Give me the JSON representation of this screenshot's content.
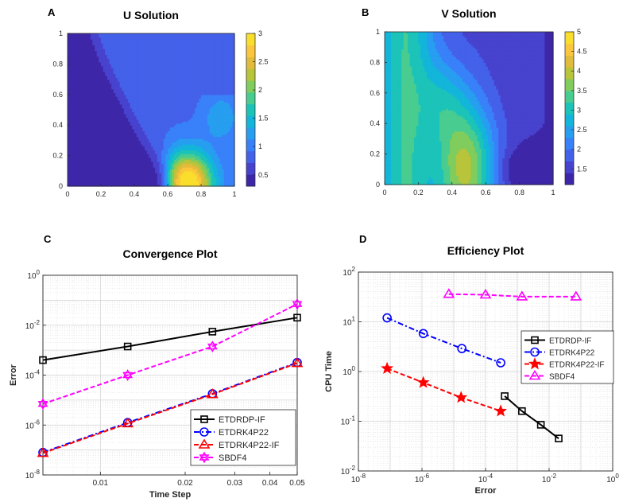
{
  "colors": {
    "parula": [
      "#3E26A8",
      "#4743CE",
      "#4461EA",
      "#3881F9",
      "#279EF0",
      "#13B5DA",
      "#1CC3B8",
      "#49CC8F",
      "#80CC5D",
      "#B8C43A",
      "#E1BB3C",
      "#FBC63B",
      "#F9DE2D",
      "#F9FB0E"
    ],
    "axis": "#262626",
    "grid": "#d4d4d4"
  },
  "chart_data": [
    {
      "panel": "A",
      "type": "heatmap",
      "title": "U Solution",
      "xlim": [
        0,
        1
      ],
      "ylim": [
        0,
        1
      ],
      "xticks": [
        "0",
        "0.2",
        "0.4",
        "0.6",
        "0.8",
        "1"
      ],
      "yticks": [
        "0",
        "0.2",
        "0.4",
        "0.6",
        "0.8",
        "1"
      ],
      "colorbar": {
        "min": 0.3,
        "max": 3,
        "ticks": [
          "0.5",
          "1",
          "1.5",
          "2",
          "2.5",
          "3"
        ]
      }
    },
    {
      "panel": "B",
      "type": "heatmap",
      "title": "V Solution",
      "xlim": [
        0,
        1
      ],
      "ylim": [
        0,
        1
      ],
      "xticks": [
        "0",
        "0.2",
        "0.4",
        "0.6",
        "0.8",
        "1"
      ],
      "yticks": [
        "0",
        "0.2",
        "0.4",
        "0.6",
        "0.8",
        "1"
      ],
      "colorbar": {
        "min": 1.1,
        "max": 5,
        "ticks": [
          "1.5",
          "2",
          "2.5",
          "3",
          "3.5",
          "4",
          "4.5",
          "5"
        ]
      }
    },
    {
      "panel": "C",
      "type": "line",
      "title": "Convergence Plot",
      "xlabel": "Time Step",
      "ylabel": "Error",
      "xscale": "log",
      "yscale": "log",
      "xlim": [
        0.00625,
        0.05
      ],
      "ylim": [
        1e-08,
        1
      ],
      "xticks": [
        {
          "v": 0.01,
          "label": "0.01"
        },
        {
          "v": 0.02,
          "label": "0.02"
        },
        {
          "v": 0.03,
          "label": "0.03"
        },
        {
          "v": 0.04,
          "label": "0.04"
        },
        {
          "v": 0.05,
          "label": "0.05"
        }
      ],
      "yticks": [
        {
          "e": -8,
          "label": "10-8"
        },
        {
          "e": -6,
          "label": "10-6"
        },
        {
          "e": -4,
          "label": "10-4"
        },
        {
          "e": -2,
          "label": "10-2"
        },
        {
          "e": 0,
          "label": "100"
        }
      ],
      "legend_position": "bottom-right",
      "series": [
        {
          "name": "ETDRDP-IF",
          "color": "#000000",
          "marker": "square",
          "dash": "solid",
          "x": [
            0.00625,
            0.0125,
            0.025,
            0.05
          ],
          "y": [
            0.0004,
            0.0014,
            0.0055,
            0.02
          ]
        },
        {
          "name": "ETDRK4P22",
          "color": "#0000FF",
          "marker": "circle",
          "dash": "dashdot",
          "x": [
            0.00625,
            0.0125,
            0.025,
            0.05
          ],
          "y": [
            8e-08,
            1.25e-06,
            1.8e-05,
            0.00032
          ]
        },
        {
          "name": "ETDRK4P22-IF",
          "color": "#FF0000",
          "marker": "triangle",
          "dash": "dashed",
          "x": [
            0.00625,
            0.0125,
            0.025,
            0.05
          ],
          "y": [
            7.5e-08,
            1.15e-06,
            1.7e-05,
            0.0003
          ]
        },
        {
          "name": "SBDF4",
          "color": "#FF00FF",
          "marker": "hexagram",
          "dash": "dashed",
          "x": [
            0.00625,
            0.0125,
            0.025,
            0.05
          ],
          "y": [
            7e-06,
            0.0001,
            0.0014,
            0.07
          ]
        }
      ]
    },
    {
      "panel": "D",
      "type": "line",
      "title": "Efficiency Plot",
      "xlabel": "Error",
      "ylabel": "CPU Time",
      "xscale": "log",
      "yscale": "log",
      "xlim": [
        1e-08,
        1
      ],
      "ylim": [
        0.01,
        100
      ],
      "xticks": [
        {
          "e": -8,
          "label": "10-8"
        },
        {
          "e": -6,
          "label": "10-6"
        },
        {
          "e": -4,
          "label": "10-4"
        },
        {
          "e": -2,
          "label": "10-2"
        },
        {
          "e": 0,
          "label": "100"
        }
      ],
      "yticks": [
        {
          "e": -2,
          "label": "10-2"
        },
        {
          "e": -1,
          "label": "10-1"
        },
        {
          "e": 0,
          "label": "100"
        },
        {
          "e": 1,
          "label": "101"
        },
        {
          "e": 2,
          "label": "102"
        }
      ],
      "legend_position": "right",
      "series": [
        {
          "name": "ETDRDP-IF",
          "color": "#000000",
          "marker": "square",
          "dash": "solid",
          "x": [
            0.0004,
            0.0014,
            0.0055,
            0.02
          ],
          "y": [
            0.32,
            0.16,
            0.085,
            0.045
          ]
        },
        {
          "name": "ETDRK4P22",
          "color": "#0000FF",
          "marker": "circle",
          "dash": "dashdot",
          "x": [
            8e-08,
            1.1e-06,
            1.8e-05,
            0.0003
          ],
          "y": [
            12,
            5.8,
            2.9,
            1.5
          ]
        },
        {
          "name": "ETDRK4P22-IF",
          "color": "#FF0000",
          "marker": "pentagram",
          "dash": "dashed",
          "x": [
            8e-08,
            1.1e-06,
            1.7e-05,
            0.0003
          ],
          "y": [
            1.15,
            0.6,
            0.3,
            0.16
          ]
        },
        {
          "name": "SBDF4",
          "color": "#FF00FF",
          "marker": "triangle",
          "dash": "dashed",
          "x": [
            7e-06,
            0.0001,
            0.0014,
            0.07
          ],
          "y": [
            36,
            35,
            32,
            32
          ]
        }
      ]
    }
  ]
}
